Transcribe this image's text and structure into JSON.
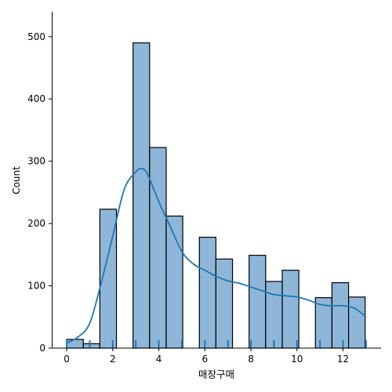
{
  "chart_data": {
    "type": "histogram",
    "xlabel": "매장구매",
    "ylabel": "Count",
    "xlim": [
      -0.65,
      13.65
    ],
    "ylim": [
      0,
      540
    ],
    "x_ticks": [
      0,
      2,
      4,
      6,
      8,
      10,
      12
    ],
    "y_ticks": [
      0,
      100,
      200,
      300,
      400,
      500
    ],
    "bin_width": 0.72,
    "bins": [
      {
        "x0": 0.0,
        "x1": 0.72,
        "count": 14
      },
      {
        "x0": 0.72,
        "x1": 1.44,
        "count": 7
      },
      {
        "x0": 1.44,
        "x1": 2.16,
        "count": 223
      },
      {
        "x0": 2.88,
        "x1": 3.6,
        "count": 490
      },
      {
        "x0": 3.6,
        "x1": 4.32,
        "count": 322
      },
      {
        "x0": 4.32,
        "x1": 5.04,
        "count": 212
      },
      {
        "x0": 5.76,
        "x1": 6.48,
        "count": 178
      },
      {
        "x0": 6.48,
        "x1": 7.2,
        "count": 143
      },
      {
        "x0": 7.92,
        "x1": 8.64,
        "count": 149
      },
      {
        "x0": 8.64,
        "x1": 9.36,
        "count": 107
      },
      {
        "x0": 9.36,
        "x1": 10.08,
        "count": 125
      },
      {
        "x0": 10.8,
        "x1": 11.52,
        "count": 81
      },
      {
        "x0": 11.52,
        "x1": 12.24,
        "count": 105
      },
      {
        "x0": 12.24,
        "x1": 12.96,
        "count": 82
      }
    ],
    "kde": {
      "x": [
        0,
        0.5,
        1,
        1.5,
        2,
        2.5,
        3,
        3.25,
        3.5,
        4,
        4.5,
        5,
        5.5,
        6,
        6.5,
        7,
        7.5,
        8,
        8.5,
        9,
        9.5,
        10,
        10.5,
        11,
        11.5,
        12,
        12.5,
        13
      ],
      "y": [
        8,
        18,
        40,
        105,
        180,
        255,
        283,
        288,
        280,
        235,
        195,
        155,
        135,
        125,
        115,
        108,
        104,
        98,
        92,
        86,
        84,
        82,
        77,
        70,
        68,
        68,
        64,
        50
      ]
    },
    "rug": [
      0,
      1,
      2,
      3,
      4,
      5,
      6,
      7,
      8,
      9,
      10,
      11,
      12,
      13
    ],
    "colors": {
      "bar_fill": "#8db6d8",
      "bar_edge": "#000000",
      "kde_line": "#1f77b4",
      "rug": "#1f77b4",
      "axis": "#000000"
    }
  }
}
